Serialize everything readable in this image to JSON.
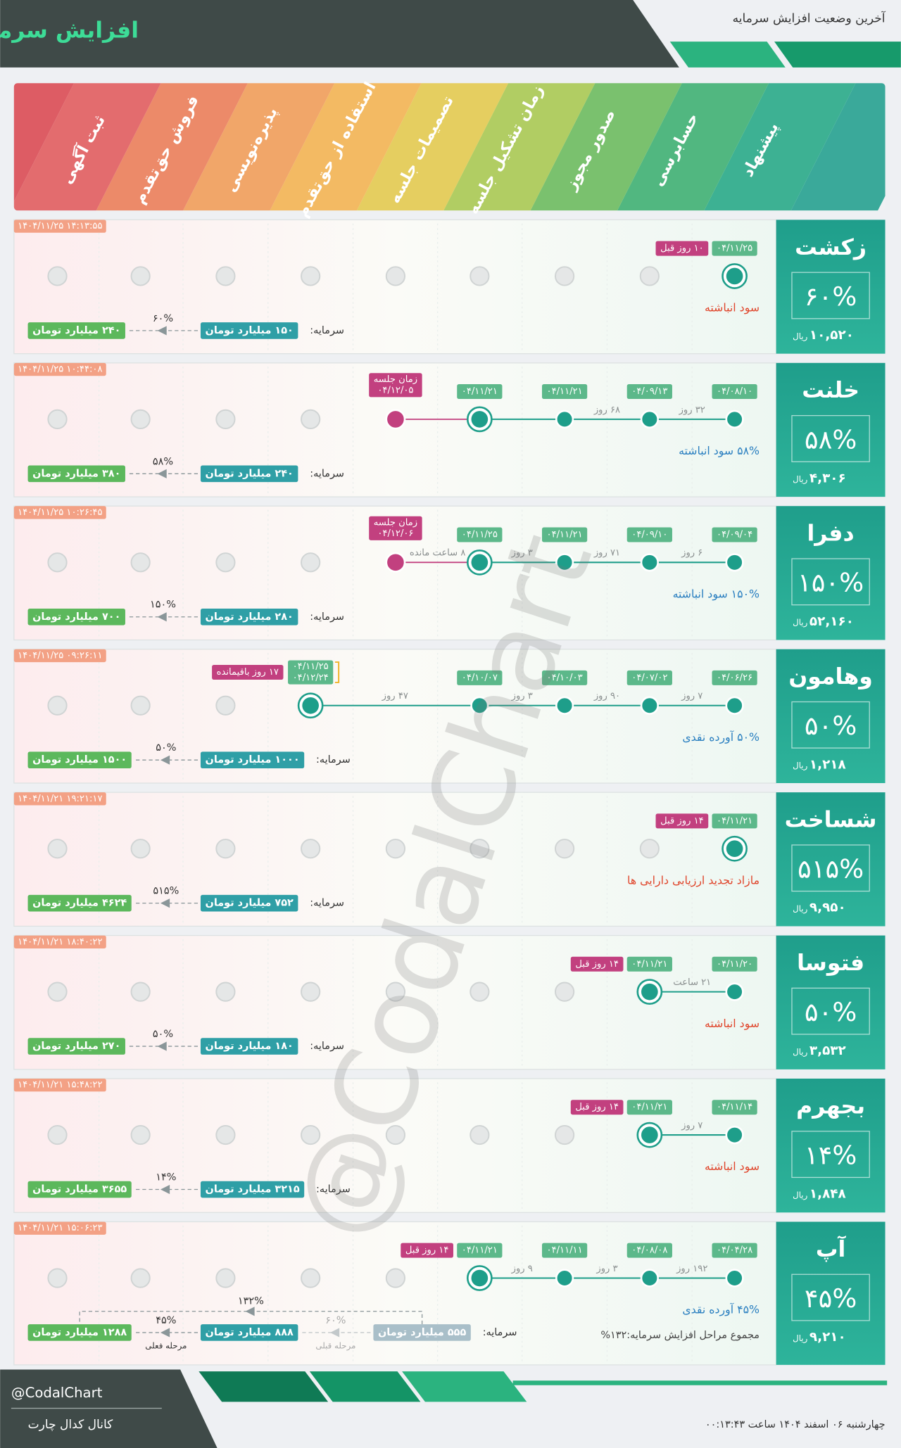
{
  "header": {
    "title": "افزایش سرمایه",
    "subtitle": "آخرین وضعیت افزایش سرمایه"
  },
  "stages": [
    "پیشنهاد",
    "حسابرسی",
    "صدور مجوز",
    "زمان تشکیل جلسه",
    "تصمیمات جلسه",
    "استفاده از حق‌تقدم",
    "پذیره‌نویسی",
    "فروش حق‌تقدم",
    "ثبت آگهی"
  ],
  "labels": {
    "capital": "سرمایه:",
    "currency": "ریال"
  },
  "companies": [
    {
      "name": "زکشت",
      "percent": "۶۰%",
      "price": "۱۰,۵۲۰",
      "timestamp": "۱۴۰۴/۱۱/۲۵ ۱۴:۱۳:۵۵",
      "dates": [
        "۰۴/۱۱/۲۵",
        null,
        null,
        null,
        null,
        null,
        null,
        null,
        null
      ],
      "gaps": [
        null,
        null,
        null,
        null,
        null,
        null,
        null,
        null
      ],
      "ago": "۱۰ روز قبل",
      "source": "سود انباشته",
      "source_color": "#e0452b",
      "capitals": [
        "۱۵۰ میلیارد تومان",
        "۲۴۰ میلیارد تومان"
      ],
      "increases": [
        "۶۰%"
      ]
    },
    {
      "name": "خلنت",
      "percent": "۵۸%",
      "price": "۴,۳۰۶",
      "timestamp": "۱۴۰۴/۱۱/۲۵ ۱۰:۴۴:۰۸",
      "dates": [
        "۰۴/۰۸/۱۰",
        "۰۴/۰۹/۱۳",
        "۰۴/۱۱/۲۱",
        "۰۴/۱۱/۲۱",
        null,
        null,
        null,
        null,
        null
      ],
      "gaps": [
        "۳۲ روز",
        "۶۸ روز",
        null,
        null,
        null,
        null,
        null,
        null
      ],
      "meeting": {
        "label": "زمان جلسه",
        "date": "۰۴/۱۲/۰۵"
      },
      "source": "۵۸% سود انباشته",
      "source_color": "#2a7fc0",
      "capitals": [
        "۲۴۰ میلیارد تومان",
        "۳۸۰ میلیارد تومان"
      ],
      "increases": [
        "۵۸%"
      ]
    },
    {
      "name": "دفرا",
      "percent": "۱۵۰%",
      "price": "۵۲,۱۶۰",
      "timestamp": "۱۴۰۴/۱۱/۲۵ ۱۰:۲۶:۴۵",
      "dates": [
        "۰۴/۰۹/۰۴",
        "۰۴/۰۹/۱۰",
        "۰۴/۱۱/۲۱",
        "۰۴/۱۱/۲۵",
        null,
        null,
        null,
        null,
        null
      ],
      "gaps": [
        "۶ روز",
        "۷۱ روز",
        "۳ روز",
        "۸ ساعت مانده",
        null,
        null,
        null,
        null
      ],
      "meeting": {
        "label": "زمان جلسه",
        "date": "۰۴/۱۲/۰۶"
      },
      "source": "۱۵۰% سود انباشته",
      "source_color": "#2a7fc0",
      "capitals": [
        "۲۸۰ میلیارد تومان",
        "۷۰۰ میلیارد تومان"
      ],
      "increases": [
        "۱۵۰%"
      ]
    },
    {
      "name": "وهامون",
      "percent": "۵۰%",
      "price": "۱,۲۱۸",
      "timestamp": "۱۴۰۴/۱۱/۲۵ ۰۹:۲۶:۱۱",
      "dates": [
        "۰۴/۰۶/۲۶",
        "۰۴/۰۷/۰۲",
        "۰۴/۱۰/۰۳",
        "۰۴/۱۰/۰۷",
        null,
        "۰۴/۱۱/۲۵",
        null,
        null,
        null
      ],
      "gaps": [
        "۷ روز",
        "۹۰ روز",
        "۳ روز",
        "۴۷ روز",
        null,
        null,
        null,
        null
      ],
      "window": {
        "end": "۰۴/۱۲/۲۴",
        "remaining": "۱۷ روز باقیمانده"
      },
      "source": "۵۰% آورده نقدی",
      "source_color": "#2a7fc0",
      "capitals": [
        "۱۰۰۰ میلیارد تومان",
        "۱۵۰۰ میلیارد تومان"
      ],
      "increases": [
        "۵۰%"
      ]
    },
    {
      "name": "شساخت",
      "percent": "۵۱۵%",
      "price": "۹,۹۵۰",
      "timestamp": "۱۴۰۴/۱۱/۲۱ ۱۹:۲۱:۱۷",
      "dates": [
        "۰۴/۱۱/۲۱",
        null,
        null,
        null,
        null,
        null,
        null,
        null,
        null
      ],
      "gaps": [
        null,
        null,
        null,
        null,
        null,
        null,
        null,
        null
      ],
      "ago": "۱۴ روز قبل",
      "source": "مازاد تجدید ارزیابی دارایی ها",
      "source_color": "#e0452b",
      "capitals": [
        "۷۵۲ میلیارد تومان",
        "۴۶۲۴ میلیارد تومان"
      ],
      "increases": [
        "۵۱۵%"
      ]
    },
    {
      "name": "فتوسا",
      "percent": "۵۰%",
      "price": "۳,۵۳۲",
      "timestamp": "۱۴۰۴/۱۱/۲۱ ۱۸:۴۰:۲۲",
      "dates": [
        "۰۴/۱۱/۲۰",
        "۰۴/۱۱/۲۱",
        null,
        null,
        null,
        null,
        null,
        null,
        null
      ],
      "gaps": [
        "۲۱ ساعت",
        null,
        null,
        null,
        null,
        null,
        null,
        null
      ],
      "ago": "۱۴ روز قبل",
      "source": "سود انباشته",
      "source_color": "#e0452b",
      "capitals": [
        "۱۸۰ میلیارد تومان",
        "۲۷۰ میلیارد تومان"
      ],
      "increases": [
        "۵۰%"
      ]
    },
    {
      "name": "بجهرم",
      "percent": "۱۴%",
      "price": "۱,۸۴۸",
      "timestamp": "۱۴۰۴/۱۱/۲۱ ۱۵:۴۸:۲۲",
      "dates": [
        "۰۴/۱۱/۱۴",
        "۰۴/۱۱/۲۱",
        null,
        null,
        null,
        null,
        null,
        null,
        null
      ],
      "gaps": [
        "۷ روز",
        null,
        null,
        null,
        null,
        null,
        null,
        null
      ],
      "ago": "۱۴ روز قبل",
      "source": "سود انباشته",
      "source_color": "#e0452b",
      "capitals": [
        "۳۲۱۵ میلیارد تومان",
        "۳۶۵۵ میلیارد تومان"
      ],
      "increases": [
        "۱۴%"
      ]
    },
    {
      "name": "آپ",
      "percent": "۴۵%",
      "price": "۹,۲۱۰",
      "timestamp": "۱۴۰۴/۱۱/۲۱ ۱۵:۰۶:۲۳",
      "dates": [
        "۰۴/۰۴/۲۸",
        "۰۴/۰۸/۰۸",
        "۰۴/۱۱/۱۱",
        "۰۴/۱۱/۲۱",
        null,
        null,
        null,
        null,
        null
      ],
      "gaps": [
        "۱۹۲ روز",
        "۳ روز",
        "۹ روز",
        null,
        null,
        null,
        null,
        null
      ],
      "ago": "۱۴ روز قبل",
      "source": "۴۵% آورده نقدی",
      "source_color": "#2a7fc0",
      "total_note": "مجموع مراحل افزایش سرمایه:۱۳۲%",
      "capitals": [
        "۵۵۵ میلیارد تومان",
        "۸۸۸ میلیارد تومان",
        "۱۲۸۸ میلیارد تومان"
      ],
      "increases": [
        "۶۰%",
        "۴۵%"
      ],
      "step_labels": [
        "مرحله قبلی",
        "مرحله فعلی"
      ],
      "total_increase": "۱۳۲%"
    }
  ],
  "watermark": "@CodalChart",
  "footer": {
    "handle": "@CodalChart",
    "channel": "کانال کدال چارت",
    "datetime": "چهارشنبه ۰۶ اسفند ۱۴۰۴ ساعت ۰۰:۱۳:۴۳"
  }
}
